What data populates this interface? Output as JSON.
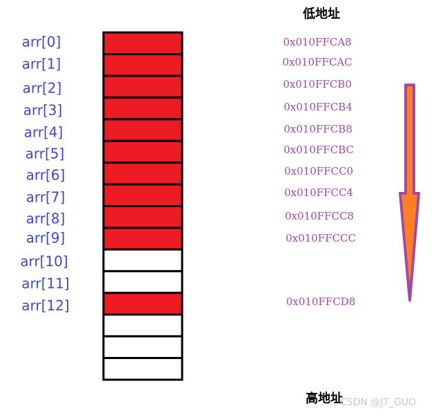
{
  "top_label": "低地址",
  "bottom_label": "高地址",
  "watermark": "CSDN @JT_GUO",
  "element_labels": [
    "arr[0]",
    "arr[1]",
    "arr[2]",
    "arr[3]",
    "arr[4]",
    "arr[5]",
    "arr[6]",
    "arr[7]",
    "arr[8]",
    "arr[9]",
    "arr[10]",
    "arr[11]",
    "arr[12]"
  ],
  "addresses": [
    "0x010FFCA8",
    "0x010FFCAC",
    "0x010FFCB0",
    "0x010FFCB4",
    "0x010FFCB8",
    "0x010FFCBC",
    "0x010FFCC0",
    "0x010FFCC4",
    "0x010FFCC8",
    "0x010FFCCC",
    "0x010FFCD8"
  ],
  "cells": [
    "#ed1c24",
    "#ed1c24",
    "#ed1c24",
    "#ed1c24",
    "#ed1c24",
    "#ed1c24",
    "#ed1c24",
    "#ed1c24",
    "#ed1c24",
    "#ed1c24",
    "#ffffff",
    "#ffffff",
    "#ed1c24",
    "#ffffff",
    "#ffffff",
    "#ffffff"
  ]
}
